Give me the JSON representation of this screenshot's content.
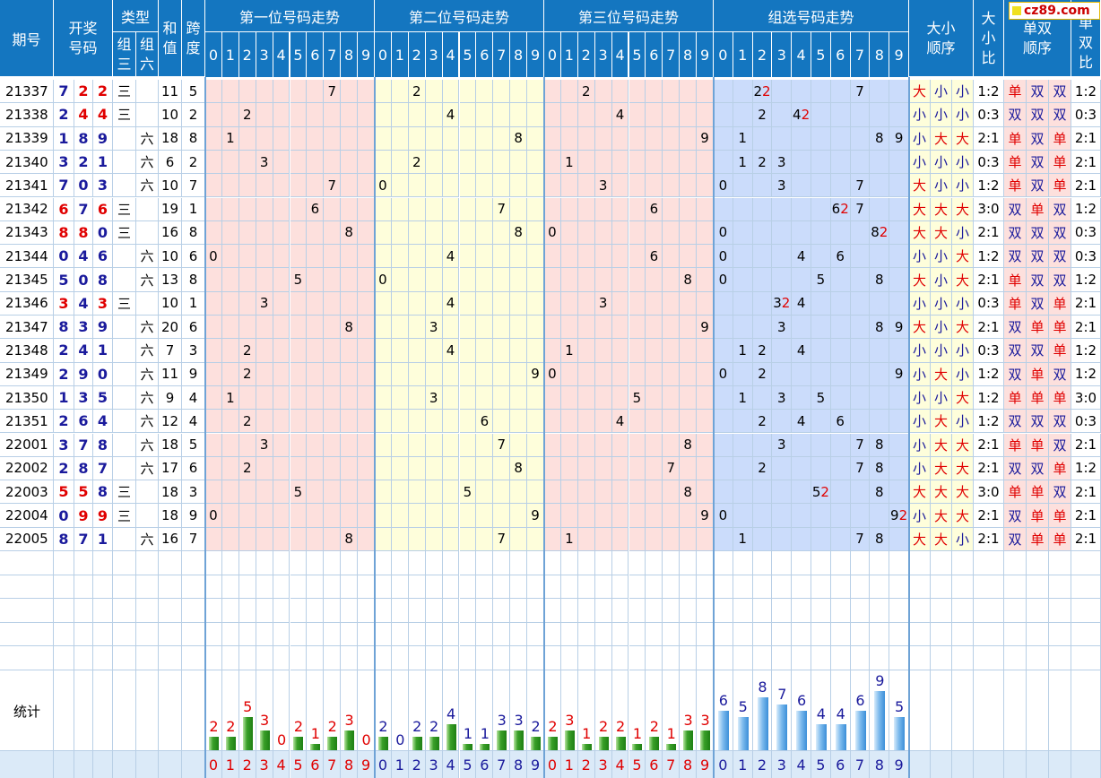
{
  "logo": "cz89.com",
  "header": {
    "issue": "期号",
    "draw": "开奖号码",
    "type": "类型",
    "z3": "组三",
    "z6": "组六",
    "sum": "和值",
    "span": "跨度",
    "pos1": "第一位号码走势",
    "pos2": "第二位号码走势",
    "pos3": "第三位号码走势",
    "group": "组选号码走势",
    "bs_order": "大小顺序",
    "bs_ratio": "大小比",
    "oe_order": "单双顺序",
    "oe_ratio": "单双比",
    "digits": [
      "0",
      "1",
      "2",
      "3",
      "4",
      "5",
      "6",
      "7",
      "8",
      "9"
    ]
  },
  "rows": [
    {
      "issue": "21337",
      "n": [
        7,
        2,
        2
      ],
      "type": "三",
      "sum": "11",
      "span": "5",
      "g": [
        [
          2,
          2
        ],
        [
          7,
          1
        ]
      ],
      "bs": [
        "大",
        "小",
        "小"
      ],
      "bsr": "1:2",
      "oe": [
        "单",
        "双",
        "双"
      ],
      "oer": "1:2"
    },
    {
      "issue": "21338",
      "n": [
        2,
        4,
        4
      ],
      "type": "三",
      "sum": "10",
      "span": "2",
      "g": [
        [
          2,
          1
        ],
        [
          4,
          2
        ]
      ],
      "bs": [
        "小",
        "小",
        "小"
      ],
      "bsr": "0:3",
      "oe": [
        "双",
        "双",
        "双"
      ],
      "oer": "0:3"
    },
    {
      "issue": "21339",
      "n": [
        1,
        8,
        9
      ],
      "type": "六",
      "sum": "18",
      "span": "8",
      "g": [
        [
          1,
          1
        ],
        [
          8,
          1
        ],
        [
          9,
          1
        ]
      ],
      "bs": [
        "小",
        "大",
        "大"
      ],
      "bsr": "2:1",
      "oe": [
        "单",
        "双",
        "单"
      ],
      "oer": "2:1"
    },
    {
      "issue": "21340",
      "n": [
        3,
        2,
        1
      ],
      "type": "六",
      "sum": "6",
      "span": "2",
      "g": [
        [
          1,
          1
        ],
        [
          2,
          1
        ],
        [
          3,
          1
        ]
      ],
      "bs": [
        "小",
        "小",
        "小"
      ],
      "bsr": "0:3",
      "oe": [
        "单",
        "双",
        "单"
      ],
      "oer": "2:1"
    },
    {
      "issue": "21341",
      "n": [
        7,
        0,
        3
      ],
      "type": "六",
      "sum": "10",
      "span": "7",
      "g": [
        [
          0,
          1
        ],
        [
          3,
          1
        ],
        [
          7,
          1
        ]
      ],
      "bs": [
        "大",
        "小",
        "小"
      ],
      "bsr": "1:2",
      "oe": [
        "单",
        "双",
        "单"
      ],
      "oer": "2:1"
    },
    {
      "issue": "21342",
      "n": [
        6,
        7,
        6
      ],
      "type": "三",
      "sum": "19",
      "span": "1",
      "g": [
        [
          6,
          2
        ],
        [
          7,
          1
        ]
      ],
      "bs": [
        "大",
        "大",
        "大"
      ],
      "bsr": "3:0",
      "oe": [
        "双",
        "单",
        "双"
      ],
      "oer": "1:2"
    },
    {
      "issue": "21343",
      "n": [
        8,
        8,
        0
      ],
      "type": "三",
      "sum": "16",
      "span": "8",
      "g": [
        [
          0,
          1
        ],
        [
          8,
          2
        ]
      ],
      "bs": [
        "大",
        "大",
        "小"
      ],
      "bsr": "2:1",
      "oe": [
        "双",
        "双",
        "双"
      ],
      "oer": "0:3"
    },
    {
      "issue": "21344",
      "n": [
        0,
        4,
        6
      ],
      "type": "六",
      "sum": "10",
      "span": "6",
      "g": [
        [
          0,
          1
        ],
        [
          4,
          1
        ],
        [
          6,
          1
        ]
      ],
      "bs": [
        "小",
        "小",
        "大"
      ],
      "bsr": "1:2",
      "oe": [
        "双",
        "双",
        "双"
      ],
      "oer": "0:3"
    },
    {
      "issue": "21345",
      "n": [
        5,
        0,
        8
      ],
      "type": "六",
      "sum": "13",
      "span": "8",
      "g": [
        [
          0,
          1
        ],
        [
          5,
          1
        ],
        [
          8,
          1
        ]
      ],
      "bs": [
        "大",
        "小",
        "大"
      ],
      "bsr": "2:1",
      "oe": [
        "单",
        "双",
        "双"
      ],
      "oer": "1:2"
    },
    {
      "issue": "21346",
      "n": [
        3,
        4,
        3
      ],
      "type": "三",
      "sum": "10",
      "span": "1",
      "g": [
        [
          3,
          2
        ],
        [
          4,
          1
        ]
      ],
      "bs": [
        "小",
        "小",
        "小"
      ],
      "bsr": "0:3",
      "oe": [
        "单",
        "双",
        "单"
      ],
      "oer": "2:1"
    },
    {
      "issue": "21347",
      "n": [
        8,
        3,
        9
      ],
      "type": "六",
      "sum": "20",
      "span": "6",
      "g": [
        [
          3,
          1
        ],
        [
          8,
          1
        ],
        [
          9,
          1
        ]
      ],
      "bs": [
        "大",
        "小",
        "大"
      ],
      "bsr": "2:1",
      "oe": [
        "双",
        "单",
        "单"
      ],
      "oer": "2:1"
    },
    {
      "issue": "21348",
      "n": [
        2,
        4,
        1
      ],
      "type": "六",
      "sum": "7",
      "span": "3",
      "g": [
        [
          1,
          1
        ],
        [
          2,
          1
        ],
        [
          4,
          1
        ]
      ],
      "bs": [
        "小",
        "小",
        "小"
      ],
      "bsr": "0:3",
      "oe": [
        "双",
        "双",
        "单"
      ],
      "oer": "1:2"
    },
    {
      "issue": "21349",
      "n": [
        2,
        9,
        0
      ],
      "type": "六",
      "sum": "11",
      "span": "9",
      "g": [
        [
          0,
          1
        ],
        [
          2,
          1
        ],
        [
          9,
          1
        ]
      ],
      "bs": [
        "小",
        "大",
        "小"
      ],
      "bsr": "1:2",
      "oe": [
        "双",
        "单",
        "双"
      ],
      "oer": "1:2"
    },
    {
      "issue": "21350",
      "n": [
        1,
        3,
        5
      ],
      "type": "六",
      "sum": "9",
      "span": "4",
      "g": [
        [
          1,
          1
        ],
        [
          3,
          1
        ],
        [
          5,
          1
        ]
      ],
      "bs": [
        "小",
        "小",
        "大"
      ],
      "bsr": "1:2",
      "oe": [
        "单",
        "单",
        "单"
      ],
      "oer": "3:0"
    },
    {
      "issue": "21351",
      "n": [
        2,
        6,
        4
      ],
      "type": "六",
      "sum": "12",
      "span": "4",
      "g": [
        [
          2,
          1
        ],
        [
          4,
          1
        ],
        [
          6,
          1
        ]
      ],
      "bs": [
        "小",
        "大",
        "小"
      ],
      "bsr": "1:2",
      "oe": [
        "双",
        "双",
        "双"
      ],
      "oer": "0:3"
    },
    {
      "issue": "22001",
      "n": [
        3,
        7,
        8
      ],
      "type": "六",
      "sum": "18",
      "span": "5",
      "g": [
        [
          3,
          1
        ],
        [
          7,
          1
        ],
        [
          8,
          1
        ]
      ],
      "bs": [
        "小",
        "大",
        "大"
      ],
      "bsr": "2:1",
      "oe": [
        "单",
        "单",
        "双"
      ],
      "oer": "2:1"
    },
    {
      "issue": "22002",
      "n": [
        2,
        8,
        7
      ],
      "type": "六",
      "sum": "17",
      "span": "6",
      "g": [
        [
          2,
          1
        ],
        [
          7,
          1
        ],
        [
          8,
          1
        ]
      ],
      "bs": [
        "小",
        "大",
        "大"
      ],
      "bsr": "2:1",
      "oe": [
        "双",
        "双",
        "单"
      ],
      "oer": "1:2"
    },
    {
      "issue": "22003",
      "n": [
        5,
        5,
        8
      ],
      "type": "三",
      "sum": "18",
      "span": "3",
      "g": [
        [
          5,
          2
        ],
        [
          8,
          1
        ]
      ],
      "bs": [
        "大",
        "大",
        "大"
      ],
      "bsr": "3:0",
      "oe": [
        "单",
        "单",
        "双"
      ],
      "oer": "2:1"
    },
    {
      "issue": "22004",
      "n": [
        0,
        9,
        9
      ],
      "type": "三",
      "sum": "18",
      "span": "9",
      "g": [
        [
          0,
          1
        ],
        [
          9,
          2
        ]
      ],
      "bs": [
        "小",
        "大",
        "大"
      ],
      "bsr": "2:1",
      "oe": [
        "双",
        "单",
        "单"
      ],
      "oer": "2:1"
    },
    {
      "issue": "22005",
      "n": [
        8,
        7,
        1
      ],
      "type": "六",
      "sum": "16",
      "span": "7",
      "g": [
        [
          1,
          1
        ],
        [
          7,
          1
        ],
        [
          8,
          1
        ]
      ],
      "bs": [
        "大",
        "大",
        "小"
      ],
      "bsr": "2:1",
      "oe": [
        "双",
        "单",
        "单"
      ],
      "oer": "2:1"
    }
  ],
  "stats_label": "统计",
  "chart_data": {
    "type": "bar",
    "categories": [
      "0",
      "1",
      "2",
      "3",
      "4",
      "5",
      "6",
      "7",
      "8",
      "9"
    ],
    "series": [
      {
        "name": "第一位号码走势",
        "values": [
          2,
          2,
          5,
          3,
          0,
          2,
          1,
          2,
          3,
          0
        ]
      },
      {
        "name": "第二位号码走势",
        "values": [
          2,
          0,
          2,
          2,
          4,
          1,
          1,
          3,
          3,
          2
        ]
      },
      {
        "name": "第三位号码走势",
        "values": [
          2,
          3,
          1,
          2,
          2,
          1,
          2,
          1,
          3,
          3
        ]
      },
      {
        "name": "组选号码走势",
        "values": [
          6,
          5,
          8,
          7,
          6,
          4,
          4,
          6,
          9,
          5
        ]
      }
    ]
  },
  "colors": {
    "header": "#1476c0",
    "pos_pink": "#fde0dd",
    "pos_yellow": "#fefedb",
    "group_blue": "#cbdcfb",
    "big_small_label": "#e00000",
    "number_blue": "#1a1a9c",
    "green_bar": "#3aa028",
    "blue_bar": "#7ebbed"
  }
}
